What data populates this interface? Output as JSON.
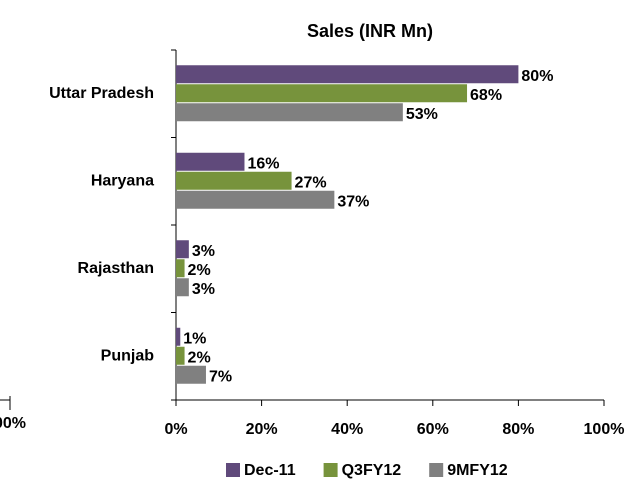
{
  "chart_data": {
    "type": "bar",
    "orientation": "horizontal",
    "title": "Sales (INR Mn)",
    "categories": [
      "Uttar Pradesh",
      "Haryana",
      "Rajasthan",
      "Punjab"
    ],
    "series": [
      {
        "name": "Dec-11",
        "color": "#604a7b",
        "values": [
          80,
          16,
          3,
          1
        ],
        "value_labels": [
          "80%",
          "16%",
          "3%",
          "1%"
        ]
      },
      {
        "name": "Q3FY12",
        "color": "#77933c",
        "values": [
          68,
          27,
          2,
          2
        ],
        "value_labels": [
          "68%",
          "27%",
          "2%",
          "2%"
        ]
      },
      {
        "name": "9MFY12",
        "color": "#808080",
        "values": [
          53,
          37,
          3,
          7
        ],
        "value_labels": [
          "53%",
          "37%",
          "3%",
          "7%"
        ]
      }
    ],
    "xlim": [
      0,
      100
    ],
    "xticks": [
      {
        "value": 0,
        "label": "0%"
      },
      {
        "value": 20,
        "label": "20%"
      },
      {
        "value": 40,
        "label": "40%"
      },
      {
        "value": 60,
        "label": "60%"
      },
      {
        "value": 80,
        "label": "80%"
      },
      {
        "value": 100,
        "label": "100%"
      }
    ],
    "legend": "bottom",
    "cropped_label": "00%"
  }
}
